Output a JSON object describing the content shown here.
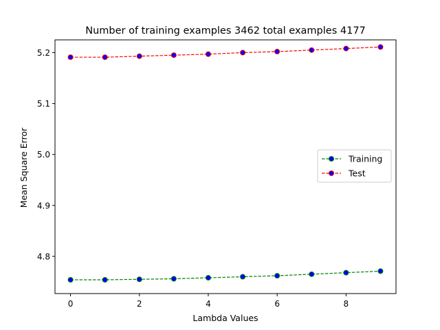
{
  "chart_data": {
    "type": "line",
    "title": "Number of training examples 3462 total examples 4177",
    "xlabel": "Lambda Values",
    "ylabel": "Mean Square Error",
    "x": [
      0,
      1,
      2,
      3,
      4,
      5,
      6,
      7,
      8,
      9
    ],
    "xlim": [
      -0.45,
      9.45
    ],
    "ylim": [
      4.727,
      5.225
    ],
    "xticks": [
      0,
      2,
      4,
      6,
      8
    ],
    "yticks": [
      4.8,
      4.9,
      5.0,
      5.1,
      5.2
    ],
    "xtick_labels": [
      "0",
      "2",
      "4",
      "6",
      "8"
    ],
    "ytick_labels": [
      "4.8",
      "4.9",
      "5.0",
      "5.1",
      "5.2"
    ],
    "grid": false,
    "legend_position": "center-right",
    "series": [
      {
        "name": "Training",
        "line_color": "#008000",
        "marker_face": "#0000ff",
        "marker_edge": "#008000",
        "line_style": "dashed",
        "values": [
          4.754,
          4.754,
          4.755,
          4.756,
          4.758,
          4.76,
          4.762,
          4.765,
          4.768,
          4.771
        ]
      },
      {
        "name": "Test",
        "line_color": "#ff0000",
        "marker_face": "#0000ff",
        "marker_edge": "#ff0000",
        "line_style": "dashed",
        "values": [
          5.191,
          5.191,
          5.193,
          5.195,
          5.197,
          5.2,
          5.202,
          5.205,
          5.208,
          5.211
        ]
      }
    ]
  }
}
